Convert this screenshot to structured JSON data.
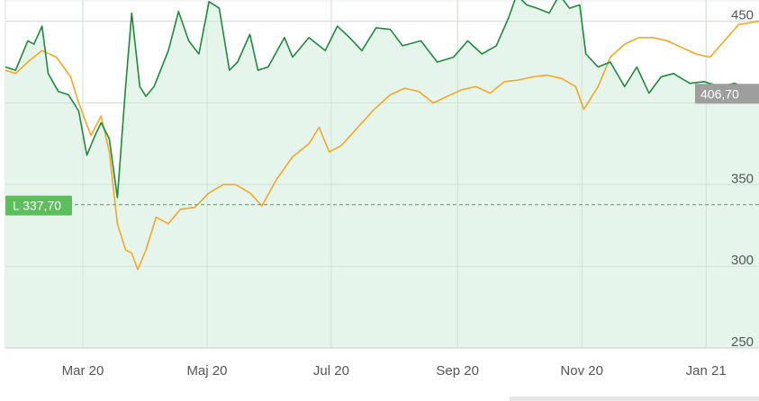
{
  "chart_data": {
    "type": "line",
    "title": "",
    "xlabel": "",
    "ylabel": "",
    "x_ticks": [
      "Mar 20",
      "Maj 20",
      "Jul 20",
      "Sep 20",
      "Nov 20",
      "Jan 21"
    ],
    "y_ticks": [
      "250",
      "300",
      "350",
      "450"
    ],
    "ylim": [
      250,
      463
    ],
    "xlim": [
      "2020-01-23",
      "2021-01-27"
    ],
    "grid": true,
    "legend": "none",
    "series": [
      {
        "color": "#1e8a3c",
        "fill": "#e6f5ec",
        "points": [
          [
            "2020-01-23",
            422
          ],
          [
            "2020-01-28",
            420
          ],
          [
            "2020-02-03",
            438
          ],
          [
            "2020-02-06",
            436
          ],
          [
            "2020-02-10",
            447
          ],
          [
            "2020-02-13",
            418
          ],
          [
            "2020-02-18",
            407
          ],
          [
            "2020-02-23",
            405
          ],
          [
            "2020-02-28",
            395
          ],
          [
            "2020-03-03",
            368
          ],
          [
            "2020-03-07",
            380
          ],
          [
            "2020-03-10",
            388
          ],
          [
            "2020-03-14",
            378
          ],
          [
            "2020-03-18",
            342
          ],
          [
            "2020-03-22",
            410
          ],
          [
            "2020-03-25",
            455
          ],
          [
            "2020-03-29",
            410
          ],
          [
            "2020-04-01",
            404
          ],
          [
            "2020-04-05",
            410
          ],
          [
            "2020-04-12",
            432
          ],
          [
            "2020-04-17",
            456
          ],
          [
            "2020-04-22",
            438
          ],
          [
            "2020-04-27",
            430
          ],
          [
            "2020-05-02",
            462
          ],
          [
            "2020-05-07",
            458
          ],
          [
            "2020-05-12",
            420
          ],
          [
            "2020-05-16",
            425
          ],
          [
            "2020-05-22",
            442
          ],
          [
            "2020-05-26",
            420
          ],
          [
            "2020-05-31",
            422
          ],
          [
            "2020-06-08",
            440
          ],
          [
            "2020-06-12",
            428
          ],
          [
            "2020-06-20",
            440
          ],
          [
            "2020-06-28",
            432
          ],
          [
            "2020-07-04",
            447
          ],
          [
            "2020-07-10",
            440
          ],
          [
            "2020-07-16",
            432
          ],
          [
            "2020-07-23",
            446
          ],
          [
            "2020-07-30",
            445
          ],
          [
            "2020-08-05",
            435
          ],
          [
            "2020-08-14",
            438
          ],
          [
            "2020-08-22",
            425
          ],
          [
            "2020-08-30",
            428
          ],
          [
            "2020-09-06",
            438
          ],
          [
            "2020-09-13",
            430
          ],
          [
            "2020-09-20",
            435
          ],
          [
            "2020-09-26",
            452
          ],
          [
            "2020-09-30",
            466
          ],
          [
            "2020-10-05",
            460
          ],
          [
            "2020-10-10",
            458
          ],
          [
            "2020-10-16",
            455
          ],
          [
            "2020-10-21",
            466
          ],
          [
            "2020-10-26",
            458
          ],
          [
            "2020-10-31",
            460
          ],
          [
            "2020-11-03",
            430
          ],
          [
            "2020-11-09",
            422
          ],
          [
            "2020-11-15",
            425
          ],
          [
            "2020-11-22",
            410
          ],
          [
            "2020-11-28",
            422
          ],
          [
            "2020-12-04",
            406
          ],
          [
            "2020-12-10",
            416
          ],
          [
            "2020-12-16",
            418
          ],
          [
            "2020-12-24",
            412
          ],
          [
            "2020-12-31",
            413
          ],
          [
            "2021-01-08",
            410
          ],
          [
            "2021-01-15",
            412
          ],
          [
            "2021-01-22",
            409
          ],
          [
            "2021-01-27",
            406
          ]
        ]
      },
      {
        "color": "#f5a623",
        "points": [
          [
            "2020-01-23",
            420
          ],
          [
            "2020-01-28",
            418
          ],
          [
            "2020-02-03",
            425
          ],
          [
            "2020-02-10",
            432
          ],
          [
            "2020-02-17",
            428
          ],
          [
            "2020-02-24",
            416
          ],
          [
            "2020-02-28",
            400
          ],
          [
            "2020-03-05",
            380
          ],
          [
            "2020-03-10",
            392
          ],
          [
            "2020-03-14",
            370
          ],
          [
            "2020-03-18",
            326
          ],
          [
            "2020-03-22",
            310
          ],
          [
            "2020-03-25",
            308
          ],
          [
            "2020-03-28",
            298
          ],
          [
            "2020-04-01",
            310
          ],
          [
            "2020-04-06",
            330
          ],
          [
            "2020-04-12",
            326
          ],
          [
            "2020-04-18",
            335
          ],
          [
            "2020-04-25",
            336
          ],
          [
            "2020-05-02",
            345
          ],
          [
            "2020-05-09",
            350
          ],
          [
            "2020-05-15",
            350
          ],
          [
            "2020-05-22",
            345
          ],
          [
            "2020-05-28",
            337
          ],
          [
            "2020-06-04",
            353
          ],
          [
            "2020-06-12",
            367
          ],
          [
            "2020-06-20",
            375
          ],
          [
            "2020-06-25",
            385
          ],
          [
            "2020-06-30",
            370
          ],
          [
            "2020-07-06",
            374
          ],
          [
            "2020-07-14",
            385
          ],
          [
            "2020-07-22",
            396
          ],
          [
            "2020-07-30",
            405
          ],
          [
            "2020-08-06",
            409
          ],
          [
            "2020-08-13",
            407
          ],
          [
            "2020-08-20",
            400
          ],
          [
            "2020-08-27",
            404
          ],
          [
            "2020-09-03",
            408
          ],
          [
            "2020-09-10",
            410
          ],
          [
            "2020-09-17",
            406
          ],
          [
            "2020-09-24",
            413
          ],
          [
            "2020-10-01",
            414
          ],
          [
            "2020-10-08",
            416
          ],
          [
            "2020-10-15",
            417
          ],
          [
            "2020-10-22",
            415
          ],
          [
            "2020-10-29",
            410
          ],
          [
            "2020-11-02",
            396
          ],
          [
            "2020-11-09",
            410
          ],
          [
            "2020-11-15",
            428
          ],
          [
            "2020-11-22",
            436
          ],
          [
            "2020-11-29",
            440
          ],
          [
            "2020-12-06",
            440
          ],
          [
            "2020-12-13",
            438
          ],
          [
            "2020-12-20",
            434
          ],
          [
            "2020-12-27",
            430
          ],
          [
            "2021-01-03",
            428
          ],
          [
            "2021-01-10",
            438
          ],
          [
            "2021-01-17",
            448
          ],
          [
            "2021-01-27",
            450
          ]
        ]
      }
    ],
    "reference_line": {
      "value": 337.7,
      "label": "L 337,70",
      "color": "#5cbf5c"
    },
    "last_value": {
      "value": 406.7,
      "label": "406,70",
      "color": "#9e9e9e"
    }
  }
}
